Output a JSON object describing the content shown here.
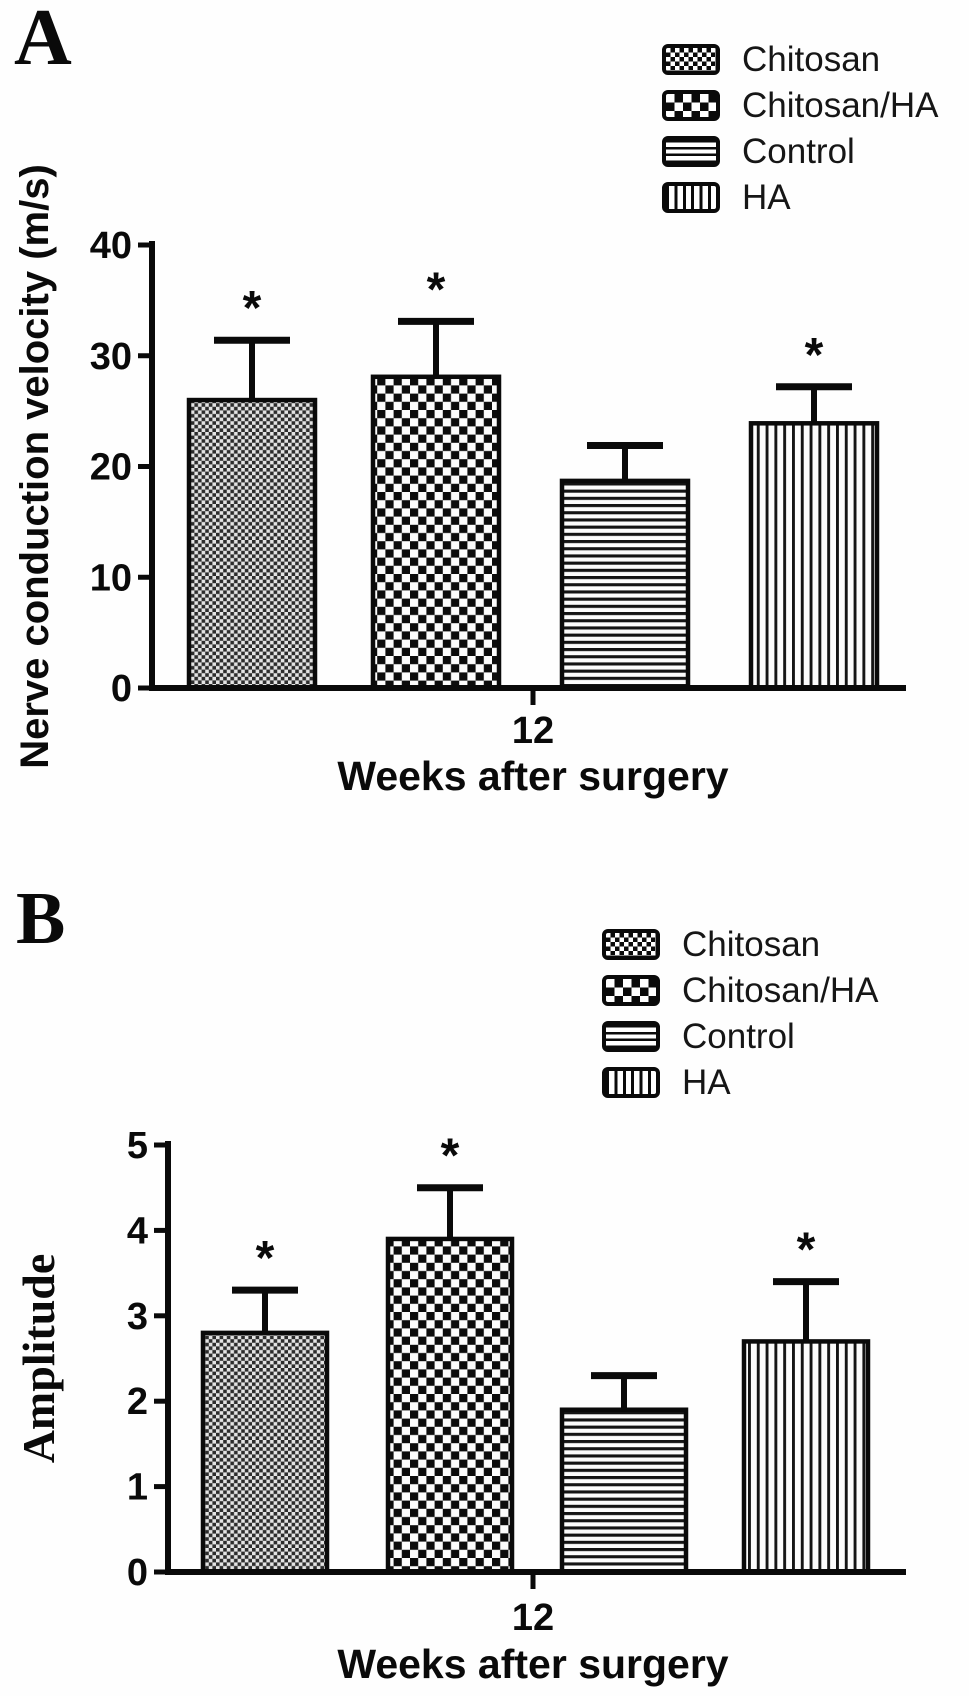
{
  "figure": {
    "background": "#ffffff",
    "ink": "#0a0a0a",
    "panels": [
      {
        "letter": "A",
        "legend": [
          {
            "label": "Chitosan",
            "pattern": "fine-checker"
          },
          {
            "label": "Chitosan/HA",
            "pattern": "coarse-checker"
          },
          {
            "label": "Control",
            "pattern": "horizontal-stripes"
          },
          {
            "label": "HA",
            "pattern": "vertical-stripes"
          }
        ]
      },
      {
        "letter": "B",
        "legend": [
          {
            "label": "Chitosan",
            "pattern": "fine-checker"
          },
          {
            "label": "Chitosan/HA",
            "pattern": "coarse-checker"
          },
          {
            "label": "Control",
            "pattern": "horizontal-stripes"
          },
          {
            "label": "HA",
            "pattern": "vertical-stripes"
          }
        ]
      }
    ]
  },
  "chart_data": [
    {
      "type": "bar",
      "panel": "A",
      "title": "",
      "ylabel": "Nerve conduction velocity (m/s)",
      "xlabel": "Weeks after surgery",
      "x_tick_label": "12",
      "ylim": [
        0,
        40
      ],
      "yticks": [
        0,
        10,
        20,
        30,
        40
      ],
      "categories": [
        "Chitosan",
        "Chitosan/HA",
        "Control",
        "HA"
      ],
      "values": [
        26.0,
        28.1,
        18.7,
        23.9
      ],
      "errors_upper": [
        5.4,
        5.0,
        3.2,
        3.3
      ],
      "significance": [
        "*",
        "*",
        "",
        "*"
      ],
      "legend_position": "top-right",
      "grid": false
    },
    {
      "type": "bar",
      "panel": "B",
      "title": "",
      "ylabel": "Amplitude",
      "xlabel": "Weeks after surgery",
      "x_tick_label": "12",
      "ylim": [
        0,
        5
      ],
      "yticks": [
        0,
        1,
        2,
        3,
        4,
        5
      ],
      "categories": [
        "Chitosan",
        "Chitosan/HA",
        "Control",
        "HA"
      ],
      "values": [
        2.8,
        3.9,
        1.9,
        2.7
      ],
      "errors_upper": [
        0.5,
        0.6,
        0.4,
        0.7
      ],
      "significance": [
        "*",
        "*",
        "",
        "*"
      ],
      "legend_position": "top-right",
      "grid": false
    }
  ]
}
